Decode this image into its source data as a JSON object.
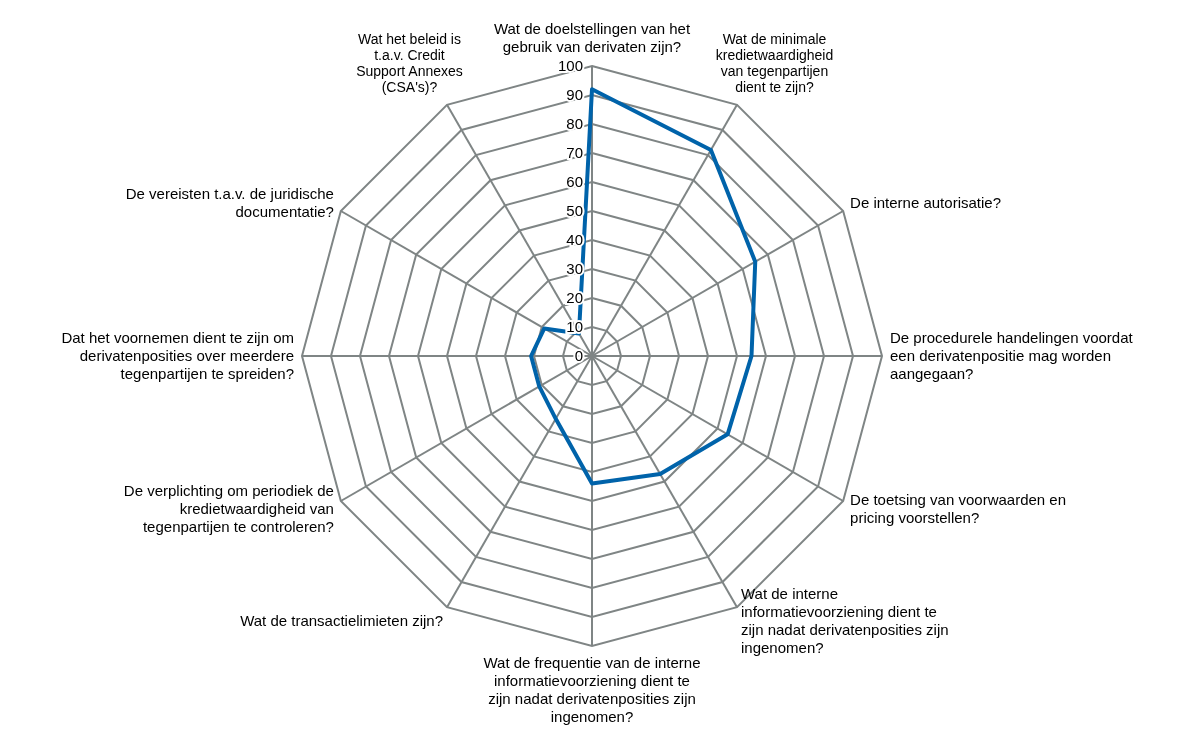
{
  "chart_data": {
    "type": "radar",
    "categories": [
      "Wat de doelstellingen van het gebruik van derivaten zijn?",
      "Wat de minimale kredietwaardigheid van tegenpartijen dient te zijn?",
      "De interne autorisatie?",
      "De procedurele handelingen voordat een derivatenpositie mag worden aangegaan?",
      "De toetsing van voorwaarden en pricing voorstellen?",
      "Wat de interne informatievoorziening dient te zijn nadat derivatenposities zijn ingenomen?",
      "Wat de frequentie van de interne informatievoorziening dient te zijn nadat derivatenposities zijn ingenomen?",
      "Wat de transactielimieten zijn?",
      "De verplichting om periodiek de kredietwaardigheid van tegenpartijen te controleren?",
      "Dat het voornemen dient te zijn om derivatenposities over meerdere tegenpartijen te spreiden?",
      "De vereisten t.a.v. de juridische documentatie?",
      "Wat het beleid is t.a.v. Credit Support Annexes (CSA's)?"
    ],
    "series": [
      {
        "color": "#0063aa",
        "values": [
          92,
          82,
          65,
          55,
          54,
          47,
          44,
          25,
          21,
          21,
          19,
          9
        ]
      }
    ],
    "ylim": [
      0,
      100
    ],
    "yticks": [
      0,
      10,
      20,
      30,
      40,
      50,
      60,
      70,
      80,
      90,
      100
    ],
    "grid": true,
    "legend": false,
    "marker": "none"
  }
}
